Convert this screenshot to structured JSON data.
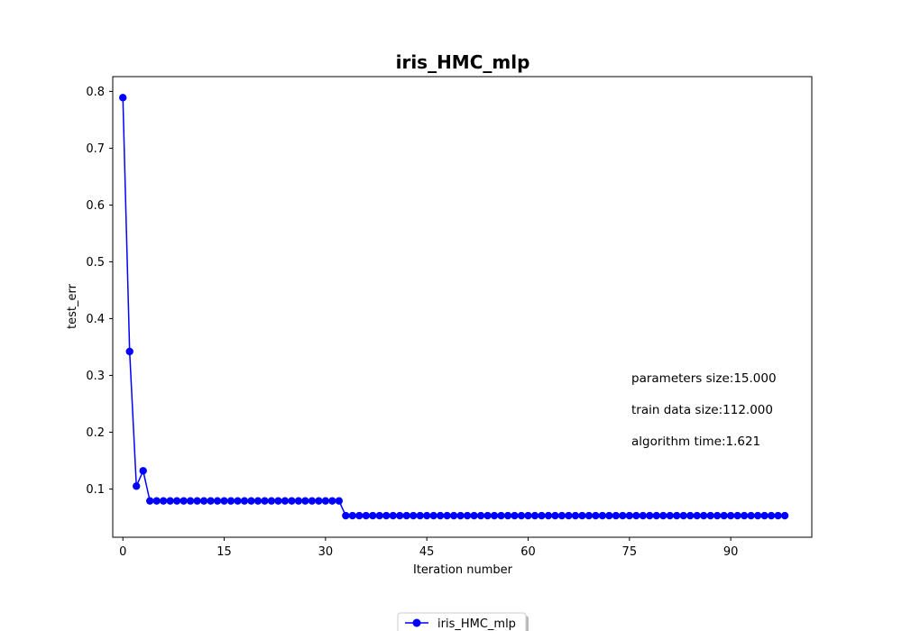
{
  "chart_data": {
    "type": "line",
    "title": "iris_HMC_mlp",
    "xlabel": "Iteration number",
    "ylabel": "test_err",
    "xlim": [
      -1.5,
      102
    ],
    "ylim": [
      0.015,
      0.826
    ],
    "xticks": [
      0,
      15,
      30,
      45,
      60,
      75,
      90
    ],
    "yticks": [
      0.1,
      0.2,
      0.3,
      0.4,
      0.5,
      0.6,
      0.7,
      0.8
    ],
    "ytick_labels": [
      "0.1",
      "0.2",
      "0.3",
      "0.4",
      "0.5",
      "0.6",
      "0.7",
      "0.8"
    ],
    "grid": false,
    "legend_placement": "bottom-center",
    "series": [
      {
        "name": "iris_HMC_mlp",
        "color": "#0000ff",
        "marker": "circle",
        "x": [
          0,
          1,
          2,
          3,
          4,
          5,
          6,
          7,
          8,
          9,
          10,
          11,
          12,
          13,
          14,
          15,
          16,
          17,
          18,
          19,
          20,
          21,
          22,
          23,
          24,
          25,
          26,
          27,
          28,
          29,
          30,
          31,
          32,
          33,
          34,
          35,
          36,
          37,
          38,
          39,
          40,
          41,
          42,
          43,
          44,
          45,
          46,
          47,
          48,
          49,
          50,
          51,
          52,
          53,
          54,
          55,
          56,
          57,
          58,
          59,
          60,
          61,
          62,
          63,
          64,
          65,
          66,
          67,
          68,
          69,
          70,
          71,
          72,
          73,
          74,
          75,
          76,
          77,
          78,
          79,
          80,
          81,
          82,
          83,
          84,
          85,
          86,
          87,
          88,
          89,
          90,
          91,
          92,
          93,
          94,
          95,
          96,
          97,
          98
        ],
        "values": [
          0.789,
          0.342,
          0.105,
          0.132,
          0.079,
          0.079,
          0.079,
          0.079,
          0.079,
          0.079,
          0.079,
          0.079,
          0.079,
          0.079,
          0.079,
          0.079,
          0.079,
          0.079,
          0.079,
          0.079,
          0.079,
          0.079,
          0.079,
          0.079,
          0.079,
          0.079,
          0.079,
          0.079,
          0.079,
          0.079,
          0.079,
          0.079,
          0.079,
          0.053,
          0.053,
          0.053,
          0.053,
          0.053,
          0.053,
          0.053,
          0.053,
          0.053,
          0.053,
          0.053,
          0.053,
          0.053,
          0.053,
          0.053,
          0.053,
          0.053,
          0.053,
          0.053,
          0.053,
          0.053,
          0.053,
          0.053,
          0.053,
          0.053,
          0.053,
          0.053,
          0.053,
          0.053,
          0.053,
          0.053,
          0.053,
          0.053,
          0.053,
          0.053,
          0.053,
          0.053,
          0.053,
          0.053,
          0.053,
          0.053,
          0.053,
          0.053,
          0.053,
          0.053,
          0.053,
          0.053,
          0.053,
          0.053,
          0.053,
          0.053,
          0.053,
          0.053,
          0.053,
          0.053,
          0.053,
          0.053,
          0.053,
          0.053,
          0.053,
          0.053,
          0.053,
          0.053,
          0.053,
          0.053,
          0.053
        ]
      }
    ],
    "annotations": [
      "parameters size:15.000",
      "train data size:112.000",
      "algorithm time:1.621"
    ]
  }
}
